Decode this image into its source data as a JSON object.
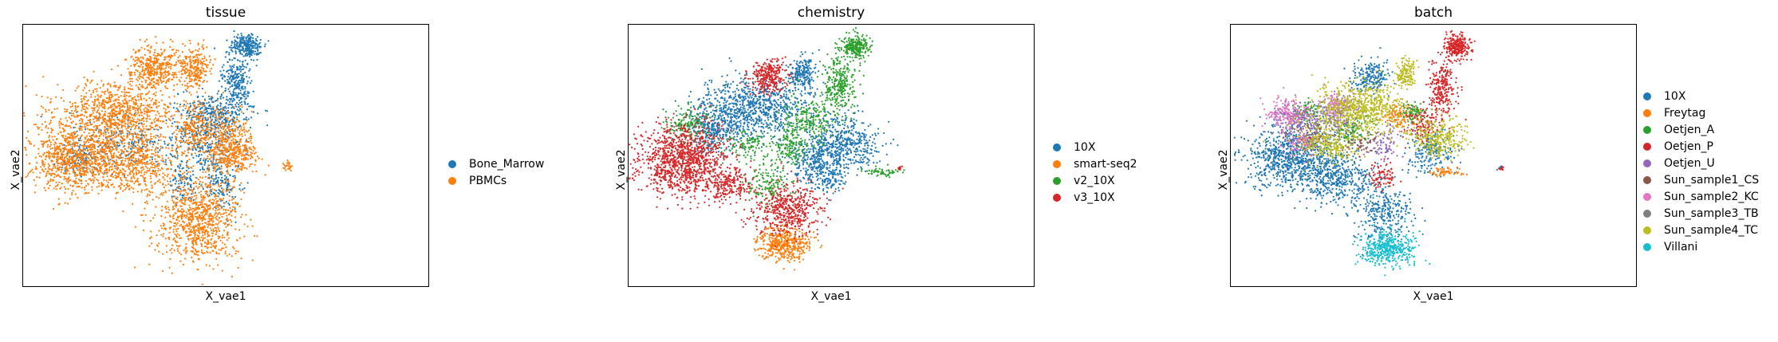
{
  "chart_data": [
    {
      "type": "scatter",
      "title": "tissue",
      "xlabel": "X_vae1",
      "ylabel": "X_vae2",
      "grid": false,
      "legend_placement": "right",
      "series": [
        {
          "name": "Bone_Marrow",
          "color": "#1f77b4",
          "regions": "bm_all"
        },
        {
          "name": "PBMCs",
          "color": "#ff7f0e",
          "regions": "pbmc_all"
        }
      ]
    },
    {
      "type": "scatter",
      "title": "chemistry",
      "xlabel": "X_vae1",
      "ylabel": "X_vae2",
      "grid": false,
      "legend_placement": "right",
      "series": [
        {
          "name": "10X",
          "color": "#1f77b4",
          "regions": "chem_10x"
        },
        {
          "name": "smart-seq2",
          "color": "#ff7f0e",
          "regions": "chem_smart"
        },
        {
          "name": "v2_10X",
          "color": "#2ca02c",
          "regions": "chem_v2"
        },
        {
          "name": "v3_10X",
          "color": "#d62728",
          "regions": "chem_v3"
        }
      ]
    },
    {
      "type": "scatter",
      "title": "batch",
      "xlabel": "X_vae1",
      "ylabel": "X_vae2",
      "grid": false,
      "legend_placement": "right",
      "series": [
        {
          "name": "10X",
          "color": "#1f77b4",
          "regions": "b_10x"
        },
        {
          "name": "Freytag",
          "color": "#ff7f0e",
          "regions": "b_frey"
        },
        {
          "name": "Oetjen_A",
          "color": "#2ca02c",
          "regions": "b_oa"
        },
        {
          "name": "Oetjen_P",
          "color": "#d62728",
          "regions": "b_op"
        },
        {
          "name": "Oetjen_U",
          "color": "#9467bd",
          "regions": "b_ou"
        },
        {
          "name": "Sun_sample1_CS",
          "color": "#8c564b",
          "regions": "b_s1"
        },
        {
          "name": "Sun_sample2_KC",
          "color": "#e377c2",
          "regions": "b_s2"
        },
        {
          "name": "Sun_sample3_TB",
          "color": "#7f7f7f",
          "regions": "b_s3"
        },
        {
          "name": "Sun_sample4_TC",
          "color": "#bcbd22",
          "regions": "b_s4"
        },
        {
          "name": "Villani",
          "color": "#17becf",
          "regions": "b_vil"
        }
      ]
    }
  ]
}
